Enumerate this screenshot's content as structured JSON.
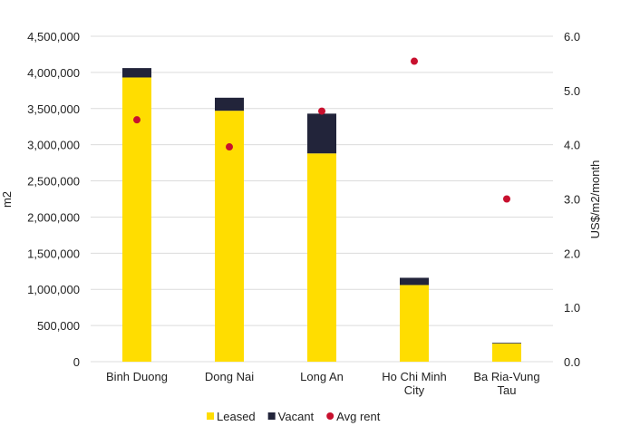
{
  "chart_data": {
    "type": "bar",
    "stacked": true,
    "categories": [
      "Binh Duong",
      "Dong Nai",
      "Long An",
      "Ho Chi Minh City",
      "Ba Ria-Vung Tau"
    ],
    "category_lines": [
      [
        "Binh Duong"
      ],
      [
        "Dong Nai"
      ],
      [
        "Long An"
      ],
      [
        "Ho Chi Minh",
        "City"
      ],
      [
        "Ba Ria-Vung",
        "Tau"
      ]
    ],
    "series": [
      {
        "name": "Leased",
        "axis": "left",
        "kind": "bar",
        "color": "#FFDD00",
        "values": [
          3930000,
          3470000,
          2880000,
          1060000,
          250000
        ]
      },
      {
        "name": "Vacant",
        "axis": "left",
        "kind": "bar",
        "color": "#22243A",
        "values": [
          130000,
          180000,
          550000,
          100000,
          10000
        ]
      },
      {
        "name": "Avg rent",
        "axis": "right",
        "kind": "scatter",
        "color": "#C8102E",
        "values": [
          4.46,
          3.96,
          4.62,
          5.54,
          3.0
        ]
      }
    ],
    "ylabel": "m2",
    "y2label": "US$/m2/month",
    "ylim": [
      0,
      4500000
    ],
    "y2lim": [
      0,
      6.0
    ],
    "yticks": [
      "0",
      "500,000",
      "1,000,000",
      "1,500,000",
      "2,000,000",
      "2,500,000",
      "3,000,000",
      "3,500,000",
      "4,000,000",
      "4,500,000"
    ],
    "y2ticks": [
      "0.0",
      "1.0",
      "2.0",
      "3.0",
      "4.0",
      "5.0",
      "6.0"
    ],
    "grid": true,
    "legend": "bottom"
  }
}
